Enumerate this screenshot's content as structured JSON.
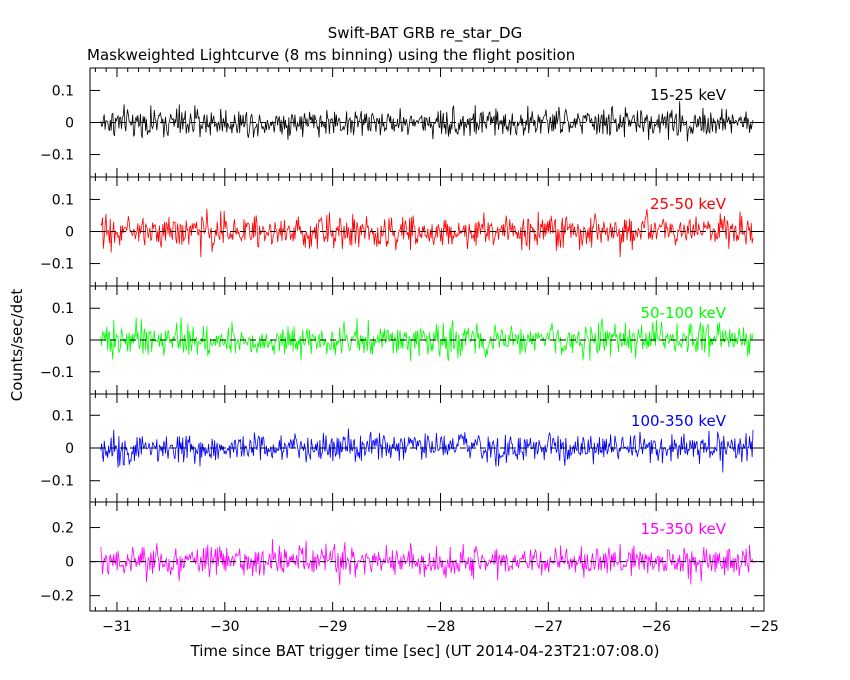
{
  "title": "Swift-BAT GRB re_star_DG",
  "subtitle": "Maskweighted Lightcurve (8 ms binning) using the flight position",
  "xlabel": "Time since BAT trigger time [sec] (UT 2014-04-23T21:07:08.0)",
  "ylabel": "Counts/sec/det",
  "chart_data": [
    {
      "type": "line",
      "series_label": "15-25 keV",
      "color": "#000000",
      "xlim": [
        -31.25,
        -25.0
      ],
      "ylim": [
        -0.17,
        0.17
      ],
      "x_ticks": [
        -31,
        -30,
        -29,
        -28,
        -27,
        -26,
        -25
      ],
      "y_ticks": [
        0.1,
        0,
        -0.1
      ],
      "y_tick_labels": [
        "0.1",
        "0",
        "−0.1"
      ],
      "x": {
        "start": -31.15,
        "end": -25.1,
        "step": 0.008
      },
      "amplitude": 0.045,
      "zero_line": true
    },
    {
      "type": "line",
      "series_label": "25-50 keV",
      "color": "#ff0000",
      "xlim": [
        -31.25,
        -25.0
      ],
      "ylim": [
        -0.17,
        0.17
      ],
      "x_ticks": [
        -31,
        -30,
        -29,
        -28,
        -27,
        -26,
        -25
      ],
      "y_ticks": [
        0.1,
        0,
        -0.1
      ],
      "y_tick_labels": [
        "0.1",
        "0",
        "−0.1"
      ],
      "x": {
        "start": -31.15,
        "end": -25.1,
        "step": 0.008
      },
      "amplitude": 0.05,
      "zero_line": true
    },
    {
      "type": "line",
      "series_label": "50-100 keV",
      "color": "#00ff00",
      "xlim": [
        -31.25,
        -25.0
      ],
      "ylim": [
        -0.17,
        0.17
      ],
      "x_ticks": [
        -31,
        -30,
        -29,
        -28,
        -27,
        -26,
        -25
      ],
      "y_ticks": [
        0.1,
        0,
        -0.1
      ],
      "y_tick_labels": [
        "0.1",
        "0",
        "−0.1"
      ],
      "x": {
        "start": -31.15,
        "end": -25.1,
        "step": 0.008
      },
      "amplitude": 0.05,
      "zero_line": true
    },
    {
      "type": "line",
      "series_label": "100-350 keV",
      "color": "#0000ff",
      "xlim": [
        -31.25,
        -25.0
      ],
      "ylim": [
        -0.165,
        0.165
      ],
      "x_ticks": [
        -31,
        -30,
        -29,
        -28,
        -27,
        -26,
        -25
      ],
      "y_ticks": [
        0.1,
        0,
        -0.1
      ],
      "y_tick_labels": [
        "0.1",
        "0",
        "−0.1"
      ],
      "x": {
        "start": -31.15,
        "end": -25.1,
        "step": 0.008
      },
      "amplitude": 0.045,
      "zero_line": true
    },
    {
      "type": "line",
      "series_label": "15-350 keV",
      "color": "#ff00ff",
      "xlim": [
        -31.25,
        -25.0
      ],
      "ylim": [
        -0.29,
        0.35
      ],
      "x_ticks": [
        -31,
        -30,
        -29,
        -28,
        -27,
        -26,
        -25
      ],
      "y_ticks": [
        0.2,
        0,
        -0.2
      ],
      "y_tick_labels": [
        "0.2",
        "0",
        "−0.2"
      ],
      "x": {
        "start": -31.15,
        "end": -25.1,
        "step": 0.008
      },
      "amplitude": 0.09,
      "zero_line": true
    }
  ],
  "bottom_x_tick_labels": [
    "−31",
    "−30",
    "−29",
    "−28",
    "−27",
    "−26",
    "−25"
  ]
}
